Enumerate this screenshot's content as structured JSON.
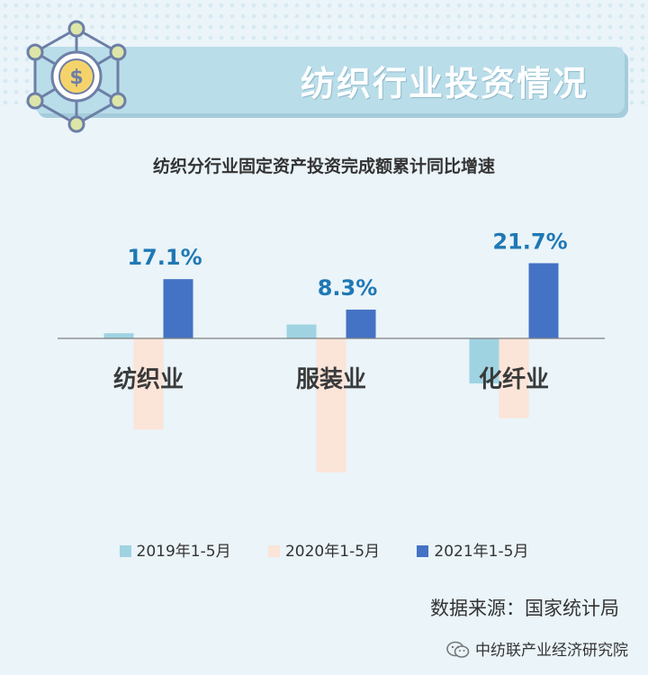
{
  "banner": {
    "title": "纺织行业投资情况",
    "icon": "dollar-network-icon"
  },
  "source": "数据来源：国家统计局",
  "footer": {
    "account": "中纺联产业经济研究院",
    "icon": "wechat-icon"
  },
  "colors": {
    "background": "#eaf4f9",
    "banner": "#b9dde9",
    "series_2019": "#9fd3e2",
    "series_2020": "#fbe4d8",
    "series_2021": "#4472c4",
    "data_label": "#1f78b4"
  },
  "chart_data": {
    "type": "bar",
    "title": "纺织分行业固定资产投资完成额累计同比增速",
    "xlabel": "",
    "ylabel": "",
    "categories": [
      "纺织业",
      "服装业",
      "化纤业"
    ],
    "series": [
      {
        "name": "2019年1-5月",
        "values": [
          1.5,
          4.0,
          -13.0
        ]
      },
      {
        "name": "2020年1-5月",
        "values": [
          -26.3,
          -38.7,
          -23.0
        ]
      },
      {
        "name": "2021年1-5月",
        "values": [
          17.1,
          8.3,
          21.7
        ]
      }
    ],
    "data_labels": [
      "17.1%",
      "8.3%",
      "21.7%"
    ],
    "ylim": [
      -40,
      22
    ],
    "grid": false,
    "legend": "bottom"
  }
}
